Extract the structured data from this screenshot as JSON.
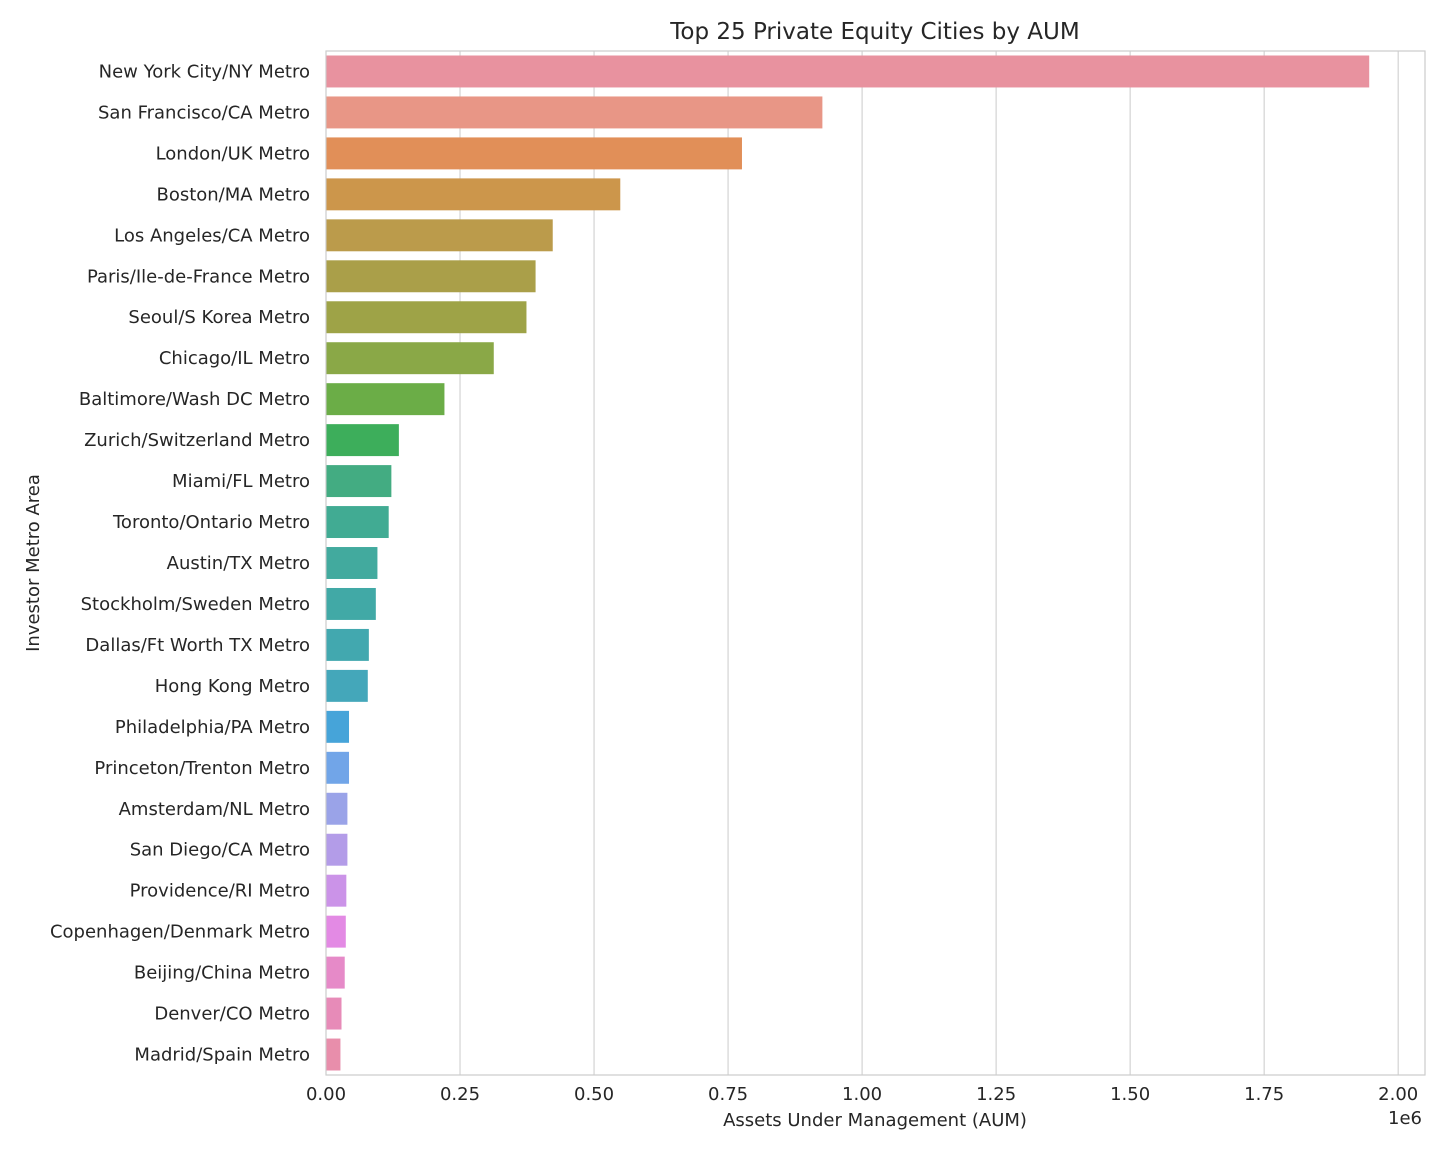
{
  "chart_data": {
    "type": "bar",
    "orientation": "horizontal",
    "title": "Top 25 Private Equity Cities by AUM",
    "xlabel": "Assets Under Management (AUM)",
    "ylabel": "Investor Metro Area",
    "x_offset_label": "1e6",
    "xlim": [
      0,
      2.05
    ],
    "xticks": [
      {
        "value": 0.0,
        "label": "0.00"
      },
      {
        "value": 0.25,
        "label": "0.25"
      },
      {
        "value": 0.5,
        "label": "0.50"
      },
      {
        "value": 0.75,
        "label": "0.75"
      },
      {
        "value": 1.0,
        "label": "1.00"
      },
      {
        "value": 1.25,
        "label": "1.25"
      },
      {
        "value": 1.5,
        "label": "1.50"
      },
      {
        "value": 1.75,
        "label": "1.75"
      },
      {
        "value": 2.0,
        "label": "2.00"
      }
    ],
    "grid": "vertical",
    "categories": [
      "New York City/NY Metro",
      "San Francisco/CA Metro",
      "London/UK Metro",
      "Boston/MA Metro",
      "Los Angeles/CA Metro",
      "Paris/Ile-de-France Metro",
      "Seoul/S Korea Metro",
      "Chicago/IL Metro",
      "Baltimore/Wash DC Metro",
      "Zurich/Switzerland Metro",
      "Miami/FL Metro",
      "Toronto/Ontario Metro",
      "Austin/TX Metro",
      "Stockholm/Sweden Metro",
      "Dallas/Ft Worth TX Metro",
      "Hong Kong Metro",
      "Philadelphia/PA Metro",
      "Princeton/Trenton Metro",
      "Amsterdam/NL Metro",
      "San Diego/CA Metro",
      "Providence/RI Metro",
      "Copenhagen/Denmark Metro",
      "Beijing/China Metro",
      "Denver/CO Metro",
      "Madrid/Spain Metro"
    ],
    "values": [
      1.945,
      0.925,
      0.775,
      0.548,
      0.422,
      0.39,
      0.373,
      0.312,
      0.22,
      0.135,
      0.121,
      0.116,
      0.095,
      0.092,
      0.079,
      0.077,
      0.042,
      0.042,
      0.039,
      0.039,
      0.037,
      0.036,
      0.034,
      0.028,
      0.026
    ],
    "colors": [
      "#e8929f",
      "#e89686",
      "#e18f58",
      "#cc964b",
      "#bb9b4b",
      "#aa9f49",
      "#9ea347",
      "#8aa847",
      "#6bad47",
      "#3dae5b",
      "#43ac82",
      "#41ab93",
      "#42aa9e",
      "#41a9a6",
      "#42a8af",
      "#44a7ba",
      "#46a4d9",
      "#71a5e8",
      "#9aa3e8",
      "#b39ce8",
      "#cb93e8",
      "#e38ae4",
      "#e68ac8",
      "#e78bb8",
      "#e88eab"
    ]
  }
}
